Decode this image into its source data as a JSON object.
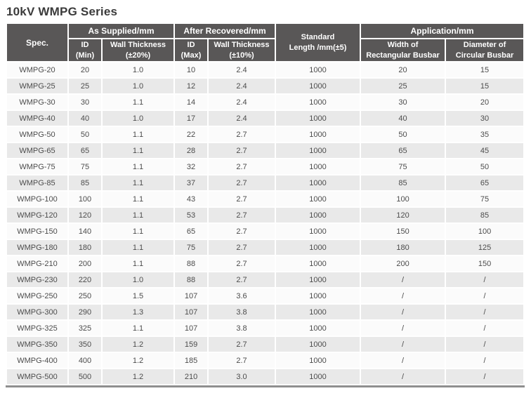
{
  "title": "10kV WMPG Series",
  "colors": {
    "header_background": "#595757",
    "header_text": "#ffffff",
    "stripe_row": "#e9e9e9",
    "body_text": "#4c4c4c",
    "bottom_bar": "#8f8f8f"
  },
  "chart_data": {
    "type": "table",
    "title": "10kV WMPG Series",
    "header": {
      "spec": "Spec.",
      "groups": {
        "as_supplied": "As Supplied/mm",
        "after_recovered": "After Recovered/mm",
        "application": "Application/mm"
      },
      "standard_length": [
        "Standard",
        "Length /mm(±5)"
      ],
      "sub": {
        "id_min": [
          "ID",
          "(Min)"
        ],
        "wt20": [
          "Wall Thickness",
          "(±20%)"
        ],
        "id_max": [
          "ID",
          "(Max)"
        ],
        "wt10": [
          "Wall Thickness",
          "(±10%)"
        ],
        "width_rect": [
          "Width of",
          "Rectangular Busbar"
        ],
        "diam_circ": [
          "Diameter of",
          "Circular Busbar"
        ]
      }
    },
    "columns": [
      "Spec.",
      "As Supplied/mm - ID (Min)",
      "As Supplied/mm - Wall Thickness (±20%)",
      "After Recovered/mm - ID (Max)",
      "After Recovered/mm - Wall Thickness (±10%)",
      "Standard Length /mm(±5)",
      "Application/mm - Width of Rectangular Busbar",
      "Application/mm - Diameter of Circular Busbar"
    ],
    "rows": [
      [
        "WMPG-20",
        "20",
        "1.0",
        "10",
        "2.4",
        "1000",
        "20",
        "15"
      ],
      [
        "WMPG-25",
        "25",
        "1.0",
        "12",
        "2.4",
        "1000",
        "25",
        "15"
      ],
      [
        "WMPG-30",
        "30",
        "1.1",
        "14",
        "2.4",
        "1000",
        "30",
        "20"
      ],
      [
        "WMPG-40",
        "40",
        "1.0",
        "17",
        "2.4",
        "1000",
        "40",
        "30"
      ],
      [
        "WMPG-50",
        "50",
        "1.1",
        "22",
        "2.7",
        "1000",
        "50",
        "35"
      ],
      [
        "WMPG-65",
        "65",
        "1.1",
        "28",
        "2.7",
        "1000",
        "65",
        "45"
      ],
      [
        "WMPG-75",
        "75",
        "1.1",
        "32",
        "2.7",
        "1000",
        "75",
        "50"
      ],
      [
        "WMPG-85",
        "85",
        "1.1",
        "37",
        "2.7",
        "1000",
        "85",
        "65"
      ],
      [
        "WMPG-100",
        "100",
        "1.1",
        "43",
        "2.7",
        "1000",
        "100",
        "75"
      ],
      [
        "WMPG-120",
        "120",
        "1.1",
        "53",
        "2.7",
        "1000",
        "120",
        "85"
      ],
      [
        "WMPG-150",
        "140",
        "1.1",
        "65",
        "2.7",
        "1000",
        "150",
        "100"
      ],
      [
        "WMPG-180",
        "180",
        "1.1",
        "75",
        "2.7",
        "1000",
        "180",
        "125"
      ],
      [
        "WMPG-210",
        "200",
        "1.1",
        "88",
        "2.7",
        "1000",
        "200",
        "150"
      ],
      [
        "WMPG-230",
        "220",
        "1.0",
        "88",
        "2.7",
        "1000",
        "/",
        "/"
      ],
      [
        "WMPG-250",
        "250",
        "1.5",
        "107",
        "3.6",
        "1000",
        "/",
        "/"
      ],
      [
        "WMPG-300",
        "290",
        "1.3",
        "107",
        "3.8",
        "1000",
        "/",
        "/"
      ],
      [
        "WMPG-325",
        "325",
        "1.1",
        "107",
        "3.8",
        "1000",
        "/",
        "/"
      ],
      [
        "WMPG-350",
        "350",
        "1.2",
        "159",
        "2.7",
        "1000",
        "/",
        "/"
      ],
      [
        "WMPG-400",
        "400",
        "1.2",
        "185",
        "2.7",
        "1000",
        "/",
        "/"
      ],
      [
        "WMPG-500",
        "500",
        "1.2",
        "210",
        "3.0",
        "1000",
        "/",
        "/"
      ]
    ]
  }
}
